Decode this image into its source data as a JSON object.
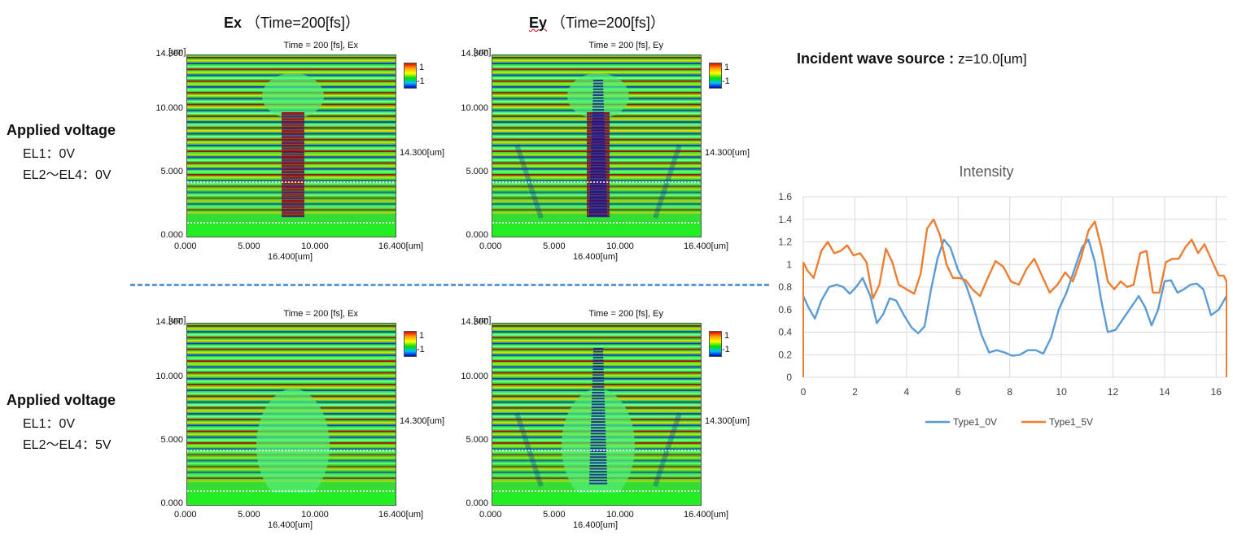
{
  "column_titles": {
    "ex": {
      "bold": "Ex",
      "rest": "（Time=200[fs]）"
    },
    "ey": {
      "bold": "Ey",
      "rest": "（Time=200[fs]）"
    }
  },
  "rows": [
    {
      "heading": "Applied voltage",
      "line1": "EL1：0V",
      "line2": "EL2～EL4：0V"
    },
    {
      "heading": "Applied voltage",
      "line1": "EL1：0V",
      "line2": "EL2～EL4：5V"
    }
  ],
  "panels": [
    {
      "title": "Time = 200 [fs], Ex",
      "side_label": "14.300[um]"
    },
    {
      "title": "Time = 200 [fs], Ey",
      "side_label": "14.300[um]"
    },
    {
      "title": "Time = 200 [fs], Ex",
      "side_label": "14.300[um]"
    },
    {
      "title": "Time = 200 [fs], Ey",
      "side_label": "14.300[um]"
    }
  ],
  "panel_axes": {
    "y_unit": "[um]",
    "y_ticks": [
      "14.300",
      "10.000",
      "5.000",
      "0.000"
    ],
    "x_ticks": [
      "0.000",
      "5.000",
      "10.000",
      "16.400[um]"
    ],
    "x_label": "16.400[um]",
    "colorbar": {
      "max": "1",
      "min": "-1"
    }
  },
  "incident": {
    "label": "Incident wave source :",
    "value": "z=10.0[um]"
  },
  "chart_data": {
    "type": "line",
    "title": "Intensity",
    "xlabel": "",
    "ylabel": "",
    "xlim": [
      0,
      16.4
    ],
    "ylim": [
      0,
      1.6
    ],
    "x_ticks": [
      0,
      2,
      4,
      6,
      8,
      10,
      12,
      14,
      16
    ],
    "y_ticks": [
      0,
      0.2,
      0.4,
      0.6,
      0.8,
      1,
      1.2,
      1.4,
      1.6
    ],
    "x_tick_labels": [
      "0",
      "2",
      "4",
      "6",
      "8",
      "10",
      "12",
      "14",
      "16"
    ],
    "y_tick_labels": [
      "0",
      "0.2",
      "0.4",
      "0.6",
      "0.8",
      "1",
      "1.2",
      "1.4",
      "1.6"
    ],
    "legend": "bottom",
    "series": [
      {
        "name": "Type1_0V",
        "color": "#5b9bd5",
        "x": [
          0,
          0.2,
          0.45,
          0.7,
          1.0,
          1.3,
          1.55,
          1.8,
          2.05,
          2.3,
          2.6,
          2.85,
          3.1,
          3.35,
          3.6,
          3.9,
          4.2,
          4.45,
          4.7,
          4.95,
          5.2,
          5.45,
          5.7,
          6.0,
          6.3,
          6.6,
          6.9,
          7.2,
          7.5,
          7.8,
          8.1,
          8.4,
          8.7,
          9.0,
          9.3,
          9.6,
          9.9,
          10.2,
          10.5,
          10.8,
          11.05,
          11.3,
          11.55,
          11.8,
          12.1,
          12.4,
          12.7,
          13.0,
          13.25,
          13.5,
          13.75,
          14.0,
          14.25,
          14.5,
          14.75,
          15.0,
          15.25,
          15.5,
          15.8,
          16.1,
          16.4
        ],
        "y": [
          0.72,
          0.62,
          0.52,
          0.68,
          0.8,
          0.82,
          0.8,
          0.74,
          0.8,
          0.88,
          0.72,
          0.48,
          0.56,
          0.7,
          0.68,
          0.55,
          0.44,
          0.39,
          0.45,
          0.78,
          1.05,
          1.22,
          1.15,
          0.95,
          0.82,
          0.62,
          0.38,
          0.22,
          0.24,
          0.22,
          0.19,
          0.2,
          0.24,
          0.24,
          0.21,
          0.35,
          0.6,
          0.75,
          0.95,
          1.15,
          1.22,
          1.02,
          0.68,
          0.4,
          0.42,
          0.52,
          0.62,
          0.72,
          0.62,
          0.46,
          0.6,
          0.85,
          0.86,
          0.75,
          0.78,
          0.82,
          0.83,
          0.78,
          0.55,
          0.6,
          0.72
        ]
      },
      {
        "name": "Type1_5V",
        "color": "#ed7d31",
        "x": [
          0,
          0.15,
          0.4,
          0.7,
          0.95,
          1.2,
          1.45,
          1.7,
          1.95,
          2.2,
          2.45,
          2.7,
          2.95,
          3.2,
          3.45,
          3.7,
          4.0,
          4.3,
          4.55,
          4.8,
          5.05,
          5.3,
          5.55,
          5.8,
          6.05,
          6.3,
          6.55,
          6.85,
          7.15,
          7.45,
          7.75,
          8.05,
          8.35,
          8.65,
          8.95,
          9.25,
          9.55,
          9.85,
          10.15,
          10.45,
          10.75,
          11.05,
          11.3,
          11.55,
          11.8,
          12.05,
          12.3,
          12.55,
          12.8,
          13.05,
          13.3,
          13.55,
          13.8,
          14.05,
          14.3,
          14.55,
          14.8,
          15.05,
          15.3,
          15.55,
          15.8,
          16.1,
          16.3,
          16.4
        ],
        "y": [
          1.02,
          0.95,
          0.88,
          1.12,
          1.2,
          1.1,
          1.12,
          1.17,
          1.08,
          1.1,
          1.02,
          0.7,
          0.82,
          1.14,
          1.02,
          0.82,
          0.78,
          0.74,
          0.92,
          1.32,
          1.4,
          1.26,
          1.0,
          0.88,
          0.88,
          0.86,
          0.78,
          0.72,
          0.88,
          1.03,
          0.98,
          0.85,
          0.82,
          0.96,
          1.05,
          0.9,
          0.75,
          0.82,
          0.93,
          0.85,
          1.05,
          1.3,
          1.38,
          1.15,
          0.85,
          0.78,
          0.85,
          0.8,
          0.82,
          1.1,
          1.12,
          0.75,
          0.75,
          1.02,
          1.05,
          1.05,
          1.15,
          1.22,
          1.1,
          1.18,
          1.05,
          0.9,
          0.9,
          0.85
        ]
      }
    ]
  }
}
